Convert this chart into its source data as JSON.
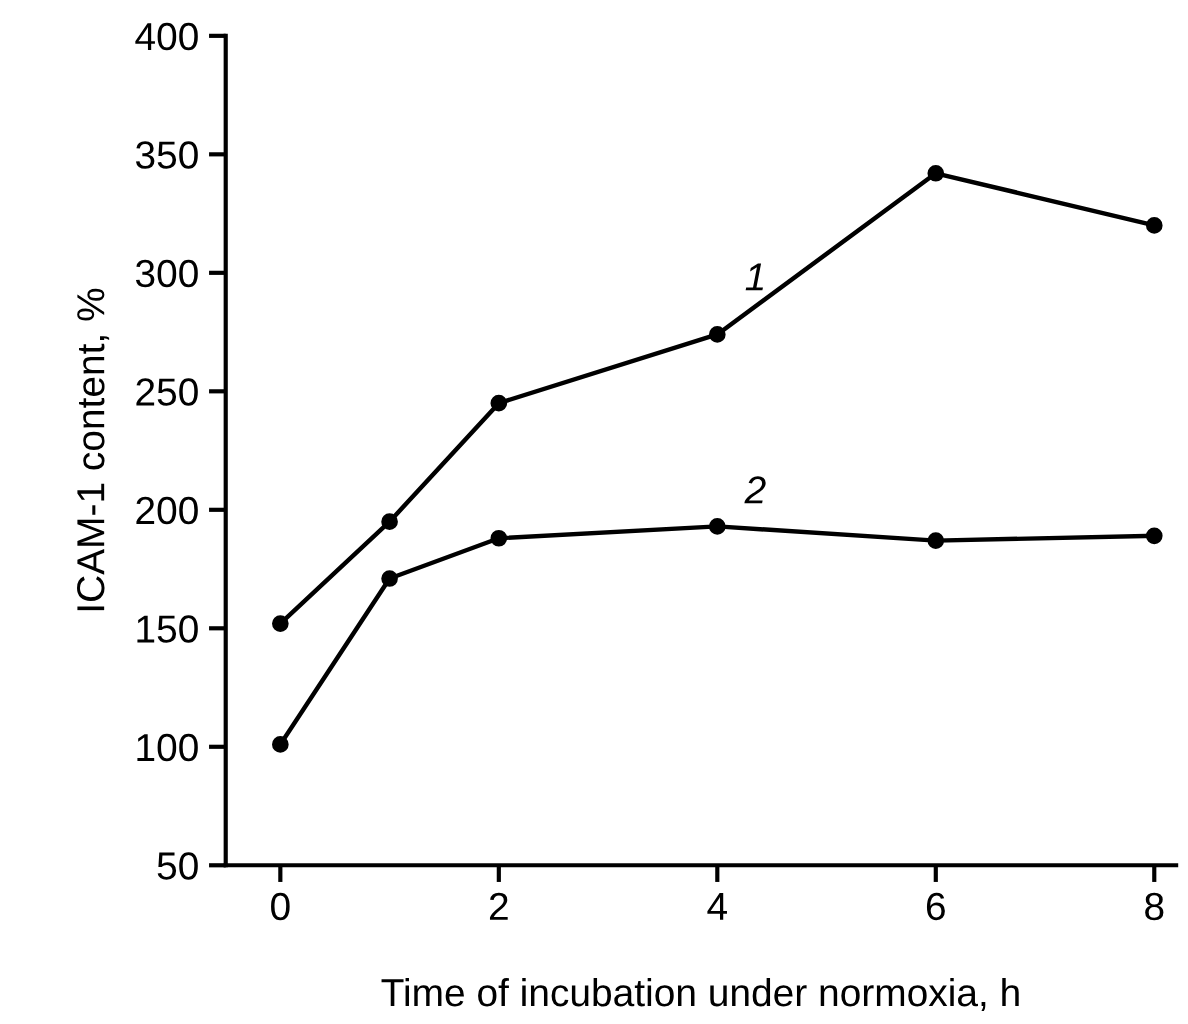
{
  "chart_data": {
    "type": "line",
    "xlabel": "Time of incubation under normoxia, h",
    "ylabel": "ICAM-1 content, %",
    "x": [
      0,
      1,
      2,
      4,
      6,
      8
    ],
    "series": [
      {
        "name": "1",
        "color": "#000000",
        "values": [
          152,
          195,
          245,
          274,
          342,
          320
        ]
      },
      {
        "name": "2",
        "color": "#000000",
        "values": [
          101,
          171,
          188,
          193,
          187,
          189
        ]
      }
    ],
    "xlim": [
      -0.5,
      8.2
    ],
    "ylim": [
      50,
      400
    ],
    "xticks": [
      0,
      2,
      4,
      6,
      8
    ],
    "yticks": [
      50,
      100,
      150,
      200,
      250,
      300,
      350,
      400
    ],
    "marker": "circle",
    "line_style": "solid",
    "grid": false,
    "legend": false
  }
}
